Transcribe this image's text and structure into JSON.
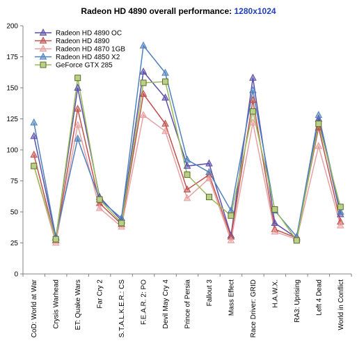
{
  "chart_data": {
    "type": "line",
    "title": "Radeon HD 4890 overall performance:",
    "subtitle": "1280x1024",
    "xlabel": "",
    "ylabel": "",
    "ylim": [
      0,
      200
    ],
    "yticks": [
      0,
      25,
      50,
      75,
      100,
      125,
      150,
      175,
      200
    ],
    "grid": false,
    "legend_position": "top-left",
    "categories": [
      "CoD: World at War",
      "Crysis Warhead",
      "ET: Quake Wars",
      "Far Cry 2",
      "S.T.A.L.K.E.R.: CS",
      "F.E.A.R. 2: PO",
      "Devil May Cry 4",
      "Prince of Persia",
      "Fallout 3",
      "Mass Effect",
      "Race Driver: GRID",
      "H.A.W.X.",
      "RA3: Uprising",
      "Left 4 Dead",
      "World in Conflict"
    ],
    "series": [
      {
        "name": "Radeon HD 4890 OC",
        "color": "#5a4fa8",
        "marker": "triangle",
        "values": [
          111,
          29,
          150,
          62,
          43,
          163,
          142,
          87,
          89,
          31,
          158,
          41,
          29,
          125,
          48
        ]
      },
      {
        "name": "Radeon HD 4890",
        "color": "#c0504d",
        "marker": "triangle",
        "values": [
          96,
          27,
          133,
          57,
          40,
          145,
          121,
          68,
          80,
          30,
          140,
          36,
          29,
          118,
          42
        ]
      },
      {
        "name": "Radeon HD 4870 1GB",
        "color": "#e8a0a0",
        "marker": "triangle",
        "values": [
          87,
          25,
          120,
          53,
          38,
          128,
          115,
          61,
          77,
          27,
          122,
          34,
          28,
          103,
          39
        ]
      },
      {
        "name": "Radeon HD 4850 X2",
        "color": "#4f81bd",
        "marker": "triangle",
        "values": [
          122,
          30,
          109,
          60,
          45,
          184,
          162,
          92,
          82,
          51,
          148,
          51,
          30,
          128,
          50
        ]
      },
      {
        "name": "GeForce GTX 285",
        "color": "#9bbb59",
        "marker": "square",
        "values": [
          87,
          28,
          158,
          60,
          41,
          154,
          155,
          80,
          62,
          47,
          131,
          52,
          27,
          121,
          54
        ]
      }
    ]
  }
}
